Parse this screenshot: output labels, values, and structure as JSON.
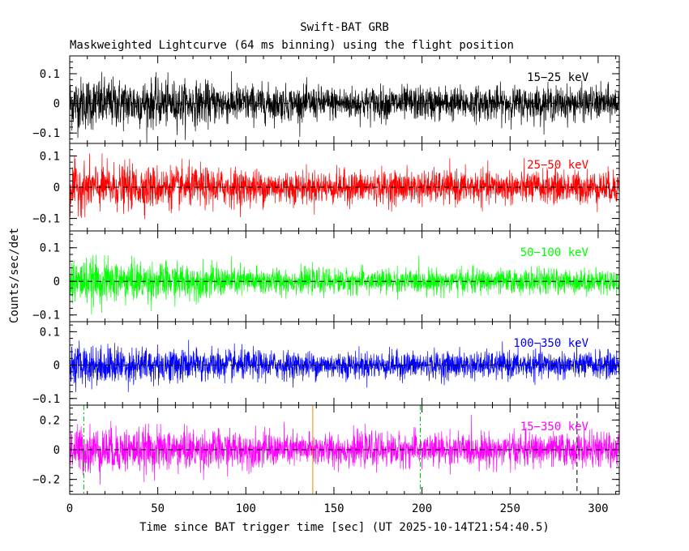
{
  "chart_data": {
    "type": "line",
    "title": "Swift-BAT GRB",
    "subtitle": "Maskweighted Lightcurve (64 ms binning) using the flight position",
    "xlabel": "Time since BAT trigger time [sec] (UT 2025-10-14T21:54:40.5)",
    "ylabel": "Counts/sec/det",
    "xlim": [
      0,
      312
    ],
    "x_ticks": [
      0,
      50,
      100,
      150,
      200,
      250,
      300
    ],
    "bin_seconds": 0.064,
    "grid": false,
    "vertical_markers": [
      {
        "x": 8,
        "color": "#00bb00",
        "style": "dash-dot"
      },
      {
        "x": 138,
        "color": "#ff8000",
        "style": "solid"
      },
      {
        "x": 199,
        "color": "#00bb00",
        "style": "dash-dot"
      },
      {
        "x": 288,
        "color": "#000000",
        "style": "dashed"
      }
    ],
    "series": [
      {
        "name": "15−25 keV",
        "color": "#000000",
        "ylim": [
          -0.135,
          0.16
        ],
        "y_ticks": [
          -0.1,
          0,
          0.1
        ],
        "y_tick_labels": [
          "−0.1",
          "0",
          "0.1"
        ],
        "noise": {
          "early_sigma": 0.045,
          "late_sigma": 0.028
        }
      },
      {
        "name": "25−50 keV",
        "color": "#ff0000",
        "ylim": [
          -0.14,
          0.14
        ],
        "y_ticks": [
          -0.1,
          0,
          0.1
        ],
        "y_tick_labels": [
          "−0.1",
          "0",
          "0.1"
        ],
        "noise": {
          "early_sigma": 0.038,
          "late_sigma": 0.026
        }
      },
      {
        "name": "50−100 keV",
        "color": "#00ff00",
        "ylim": [
          -0.12,
          0.15
        ],
        "y_ticks": [
          -0.1,
          0,
          0.1
        ],
        "y_tick_labels": [
          "−0.1",
          "0",
          "0.1"
        ],
        "noise": {
          "early_sigma": 0.034,
          "late_sigma": 0.018
        }
      },
      {
        "name": "100−350 keV",
        "color": "#0000ff",
        "ylim": [
          -0.12,
          0.13
        ],
        "y_ticks": [
          -0.1,
          0,
          0.1
        ],
        "y_tick_labels": [
          "−0.1",
          "0",
          "0.1"
        ],
        "noise": {
          "early_sigma": 0.03,
          "late_sigma": 0.02
        }
      },
      {
        "name": "15−350 keV",
        "color": "#ff00ff",
        "ylim": [
          -0.3,
          0.3
        ],
        "y_ticks": [
          -0.2,
          0,
          0.2
        ],
        "y_tick_labels": [
          "−0.2",
          "0",
          "0.2"
        ],
        "noise": {
          "early_sigma": 0.08,
          "late_sigma": 0.055
        }
      }
    ]
  }
}
